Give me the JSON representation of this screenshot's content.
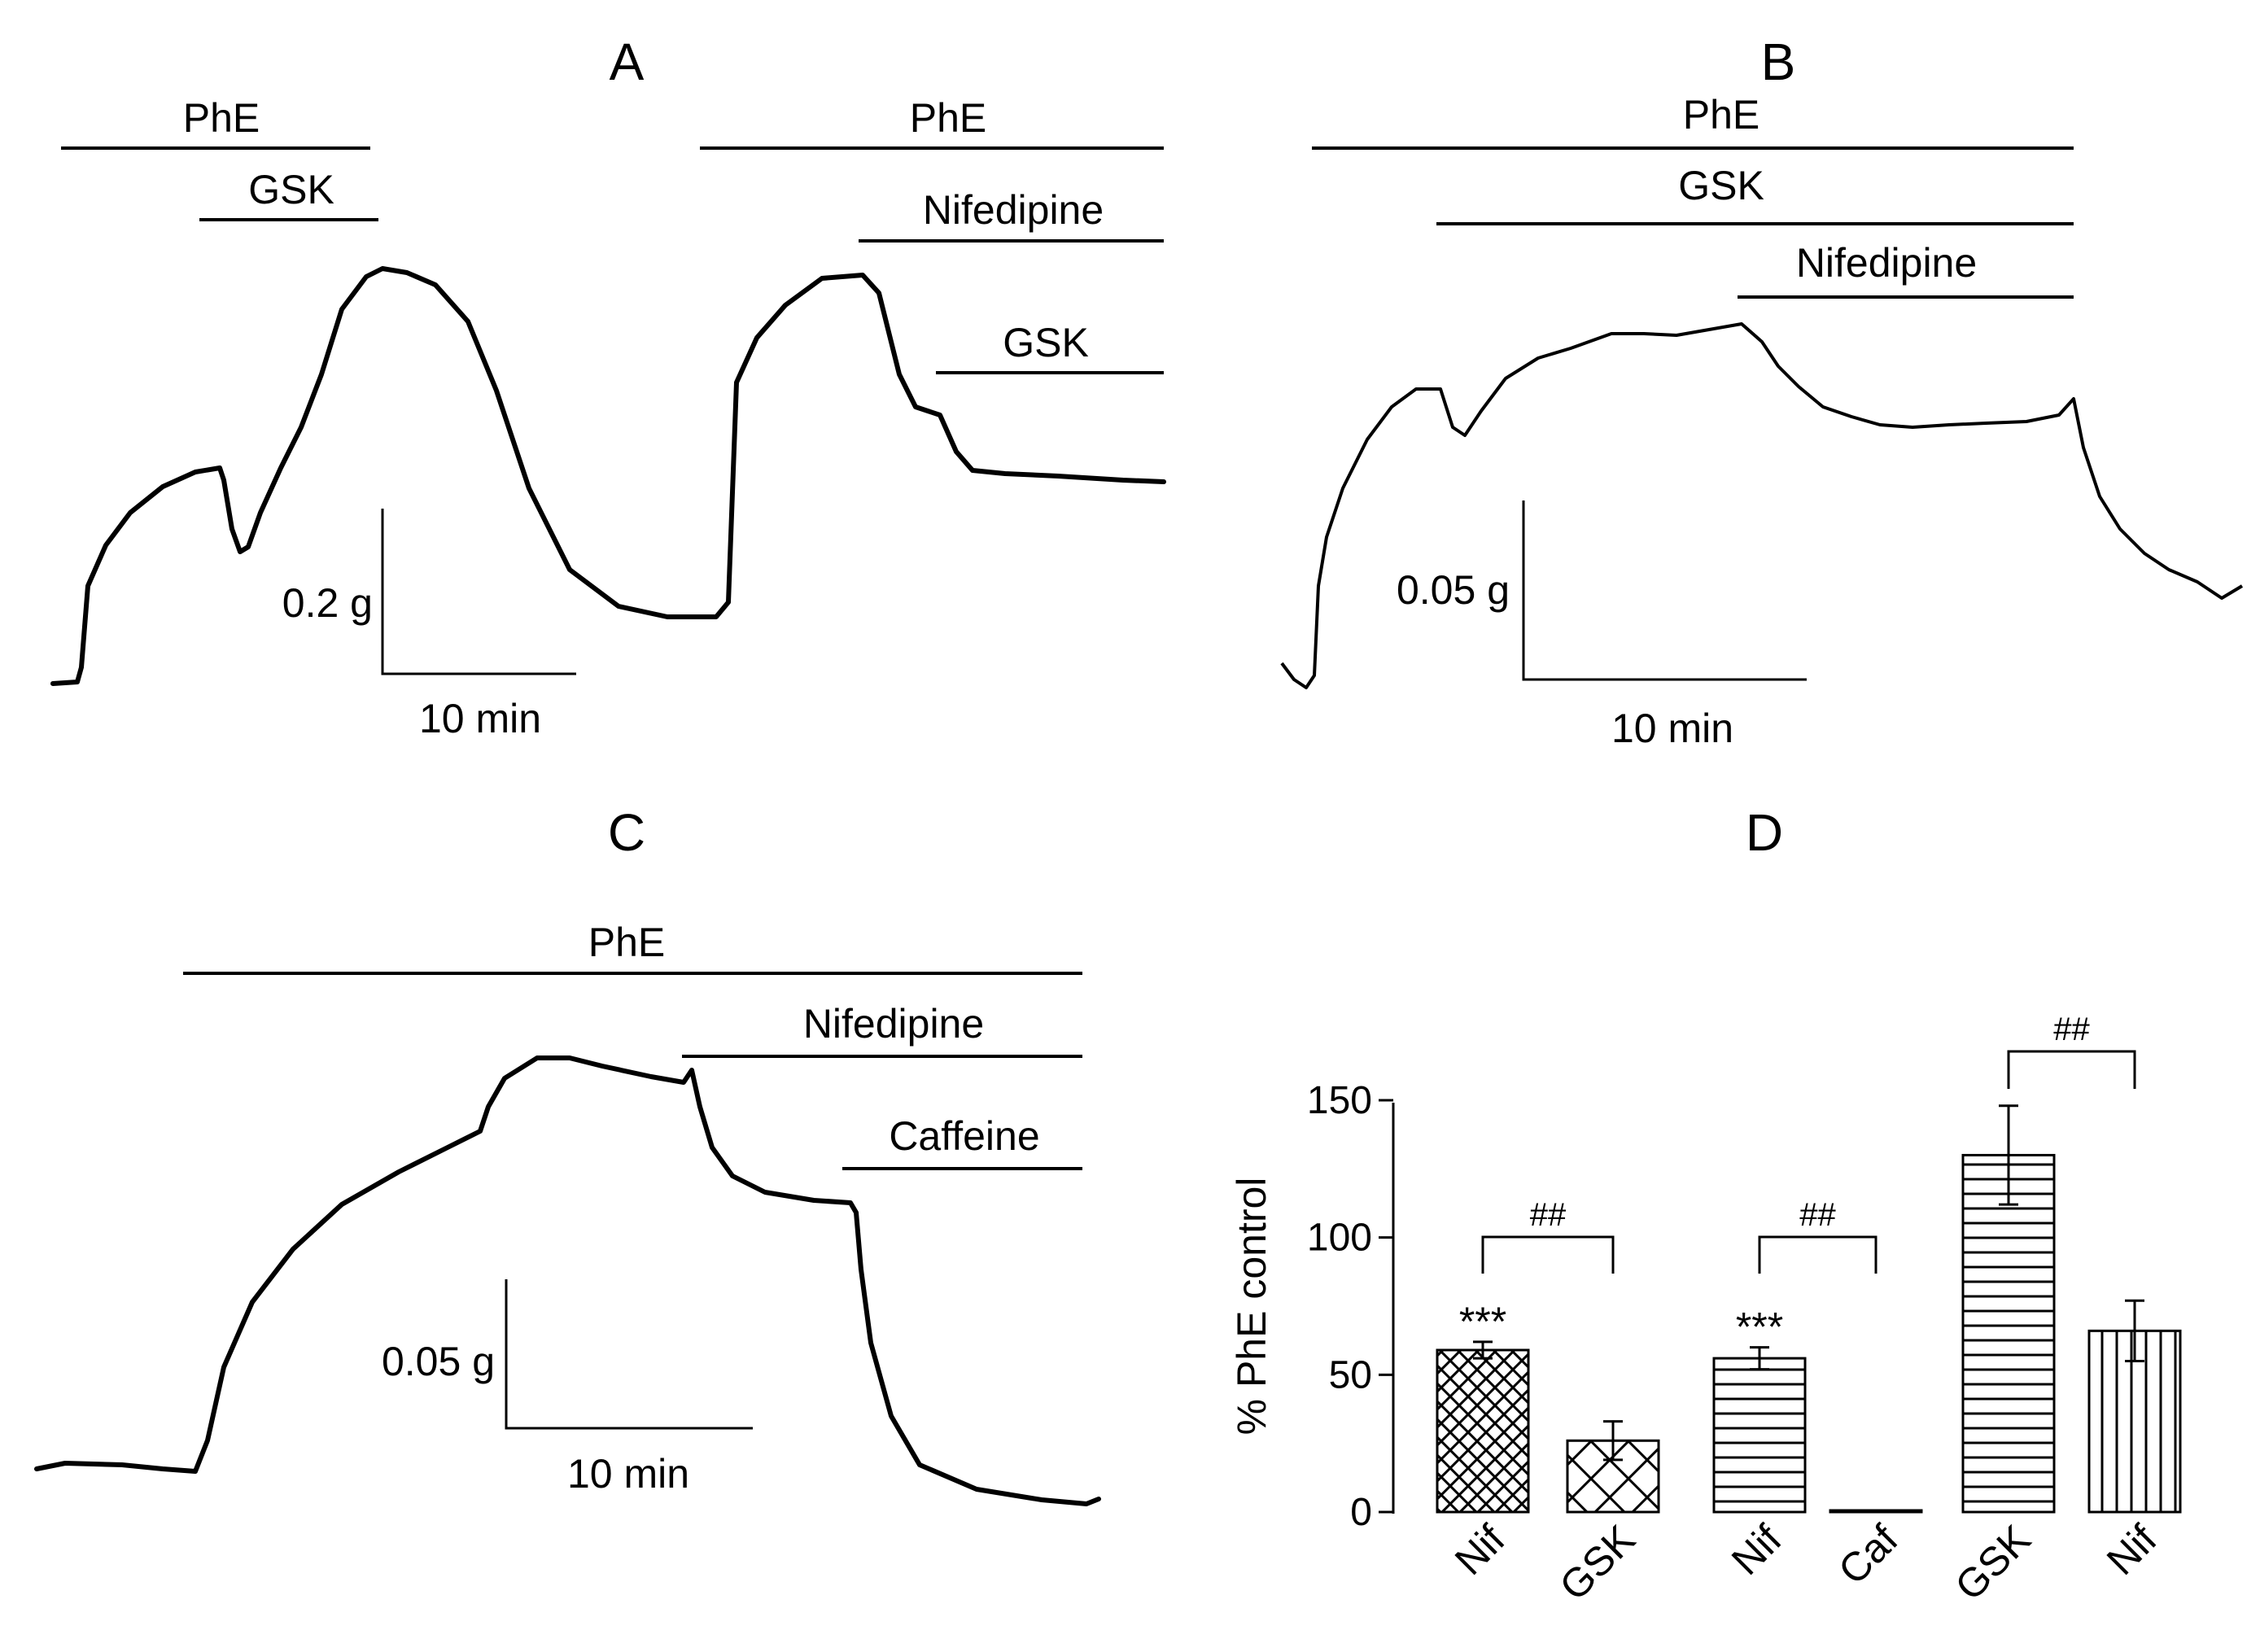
{
  "panels": {
    "A": {
      "letter": "A",
      "drug_labels": [
        "PhE",
        "GSK",
        "PhE",
        "Nifedipine",
        "GSK"
      ],
      "scale_y": "0.2 g",
      "scale_x": "10 min"
    },
    "B": {
      "letter": "B",
      "drug_labels": [
        "PhE",
        "GSK",
        "Nifedipine"
      ],
      "scale_y": "0.05 g",
      "scale_x": "10 min"
    },
    "C": {
      "letter": "C",
      "drug_labels": [
        "PhE",
        "Nifedipine",
        "Caffeine"
      ],
      "scale_y": "0.05 g",
      "scale_x": "10 min"
    },
    "D": {
      "letter": "D"
    }
  },
  "chart_data": {
    "type": "bar",
    "title": "D",
    "ylabel": "% PhE control",
    "xlabel": "",
    "ylim": [
      0,
      150
    ],
    "yticks": [
      0,
      50,
      100,
      150
    ],
    "categories": [
      "Nif",
      "GSK",
      "Nif",
      "Caf",
      "GSK",
      "Nif"
    ],
    "values": [
      59,
      26,
      56,
      0,
      130,
      66
    ],
    "errors": [
      3,
      7,
      4,
      0,
      18,
      11
    ],
    "patterns": [
      "crosshatch-dense",
      "crosshatch-sparse",
      "horizontal",
      "none",
      "horizontal",
      "vertical"
    ],
    "annotations": {
      "significance_above_bars": [
        "***",
        "",
        "***",
        "",
        "",
        ""
      ],
      "comparison_brackets": [
        {
          "from": 0,
          "to": 1,
          "label": "##"
        },
        {
          "from": 2,
          "to": 3,
          "label": "##"
        },
        {
          "from": 4,
          "to": 5,
          "label": "##"
        }
      ]
    }
  }
}
